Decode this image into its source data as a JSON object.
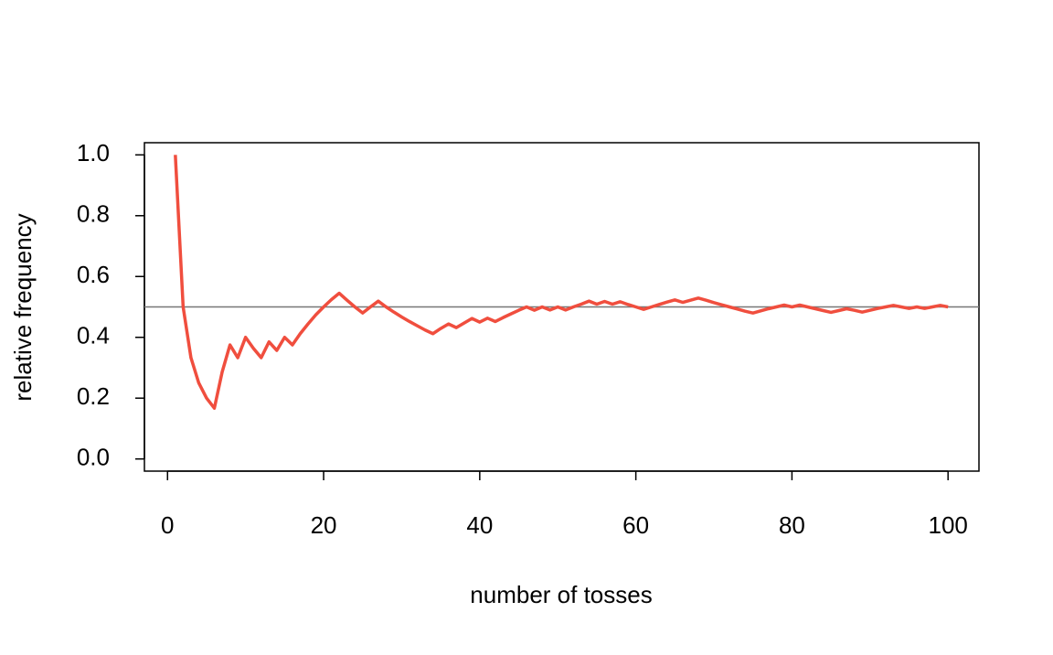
{
  "chart_data": {
    "type": "line",
    "x_label": "number of tosses",
    "y_label": "relative frequency",
    "x": [
      1,
      2,
      3,
      4,
      5,
      6,
      7,
      8,
      9,
      10,
      11,
      12,
      13,
      14,
      15,
      16,
      17,
      18,
      19,
      20,
      21,
      22,
      23,
      24,
      25,
      26,
      27,
      28,
      29,
      30,
      31,
      32,
      33,
      34,
      35,
      36,
      37,
      38,
      39,
      40,
      41,
      42,
      43,
      44,
      45,
      46,
      47,
      48,
      49,
      50,
      51,
      52,
      53,
      54,
      55,
      56,
      57,
      58,
      59,
      60,
      61,
      62,
      63,
      64,
      65,
      66,
      67,
      68,
      69,
      70,
      71,
      72,
      73,
      74,
      75,
      76,
      77,
      78,
      79,
      80,
      81,
      82,
      83,
      84,
      85,
      86,
      87,
      88,
      89,
      90,
      91,
      92,
      93,
      94,
      95,
      96,
      97,
      98,
      99,
      100
    ],
    "series": [
      {
        "color": "#f04e3e",
        "values": [
          1.0,
          0.5,
          0.333,
          0.25,
          0.2,
          0.167,
          0.286,
          0.375,
          0.333,
          0.4,
          0.364,
          0.333,
          0.385,
          0.357,
          0.4,
          0.375,
          0.412,
          0.444,
          0.474,
          0.5,
          0.524,
          0.545,
          0.522,
          0.5,
          0.48,
          0.5,
          0.519,
          0.5,
          0.483,
          0.467,
          0.452,
          0.438,
          0.424,
          0.412,
          0.429,
          0.444,
          0.432,
          0.447,
          0.462,
          0.45,
          0.463,
          0.452,
          0.465,
          0.477,
          0.489,
          0.5,
          0.489,
          0.5,
          0.49,
          0.5,
          0.49,
          0.5,
          0.509,
          0.519,
          0.509,
          0.518,
          0.509,
          0.517,
          0.508,
          0.5,
          0.492,
          0.5,
          0.508,
          0.516,
          0.523,
          0.515,
          0.522,
          0.529,
          0.522,
          0.514,
          0.507,
          0.5,
          0.493,
          0.486,
          0.48,
          0.487,
          0.494,
          0.5,
          0.506,
          0.5,
          0.506,
          0.5,
          0.494,
          0.488,
          0.482,
          0.488,
          0.494,
          0.489,
          0.483,
          0.489,
          0.495,
          0.5,
          0.505,
          0.5,
          0.495,
          0.5,
          0.495,
          0.5,
          0.505,
          0.5
        ]
      }
    ],
    "hline": 0.5,
    "hline_color": "#777777",
    "xlim": [
      -2.96,
      103.96
    ],
    "ylim": [
      -0.04,
      1.04
    ],
    "xticks": [
      0,
      20,
      40,
      60,
      80,
      100
    ],
    "yticks": [
      {
        "value": 0,
        "label": "0.0"
      },
      {
        "value": 0.2,
        "label": "0.2"
      },
      {
        "value": 0.4,
        "label": "0.4"
      },
      {
        "value": 0.6,
        "label": "0.6"
      },
      {
        "value": 0.8,
        "label": "0.8"
      },
      {
        "value": 1,
        "label": "1.0"
      }
    ]
  }
}
